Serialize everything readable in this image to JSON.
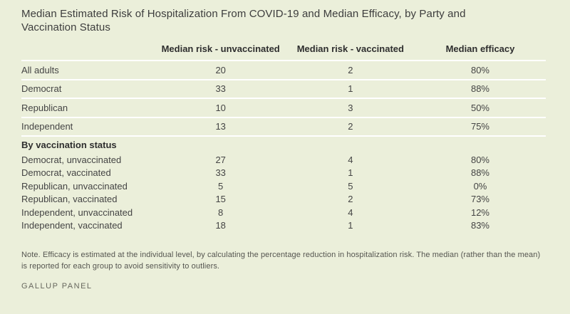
{
  "chart_data": {
    "type": "table",
    "title": "Median Estimated Risk of Hospitalization From COVID-19 and Median Efficacy, by Party and Vaccination Status",
    "columns": [
      "",
      "Median risk - unvaccinated",
      "Median risk - vaccinated",
      "Median efficacy"
    ],
    "rows": [
      [
        "All adults",
        20,
        2,
        "80%"
      ],
      [
        "Democrat",
        33,
        1,
        "88%"
      ],
      [
        "Republican",
        10,
        3,
        "50%"
      ],
      [
        "Independent",
        13,
        2,
        "75%"
      ]
    ],
    "section": {
      "header": "By vaccination status",
      "rows": [
        [
          "Democrat, unvaccinated",
          27,
          4,
          "80%"
        ],
        [
          "Democrat, vaccinated",
          33,
          1,
          "88%"
        ],
        [
          "Republican, unvaccinated",
          5,
          5,
          "0%"
        ],
        [
          "Republican, vaccinated",
          15,
          2,
          "73%"
        ],
        [
          "Independent, unvaccinated",
          8,
          4,
          "12%"
        ],
        [
          "Independent, vaccinated",
          18,
          1,
          "83%"
        ]
      ]
    },
    "note": "Note. Efficacy is estimated at the individual level, by calculating the percentage reduction in hospitalization risk. The median (rather than the mean) is reported for each group to avoid sensitivity to outliers.",
    "source": "GALLUP PANEL",
    "layout": {
      "grid": false,
      "legend_position": "none"
    }
  },
  "colors": {
    "background": "#ebefda",
    "divider": "#ffffff",
    "text": "#404040",
    "heading": "#2e2e2e"
  }
}
